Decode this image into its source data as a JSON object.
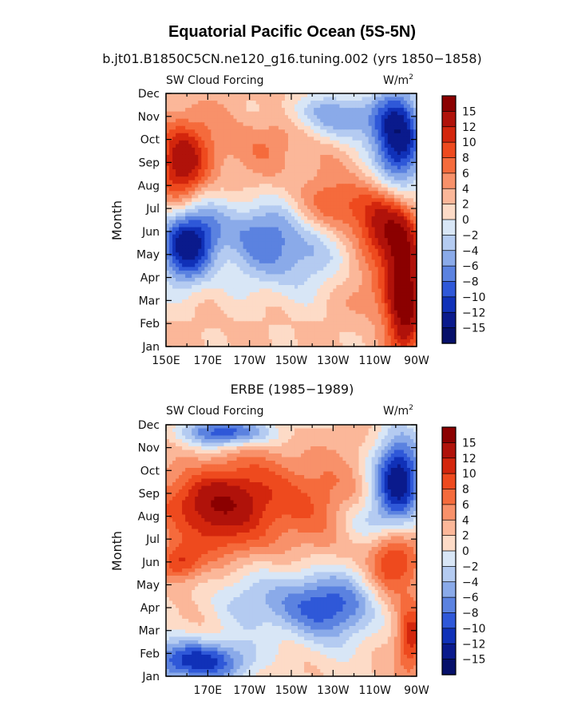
{
  "title": "Equatorial Pacific Ocean (5S-5N)",
  "colorbar_levels": [
    "15",
    "12",
    "10",
    "8",
    "6",
    "4",
    "2",
    "0",
    "−2",
    "−4",
    "−6",
    "−8",
    "−10",
    "−12",
    "−15"
  ],
  "colors": {
    "positive_max": "#8b0000",
    "negative_max": "#08086e",
    "zero": "#ffffff",
    "scale": [
      "#8b0000",
      "#b0120a",
      "#d3260d",
      "#ee4a1e",
      "#f56b3c",
      "#f8916a",
      "#fbb799",
      "#fddbc7",
      "#d8e6f6",
      "#b4cbf1",
      "#8aaae9",
      "#5b82e0",
      "#2f58d8",
      "#1031b8",
      "#0a1a8c",
      "#06106a"
    ]
  },
  "chart_data": [
    {
      "type": "heatmap",
      "subtitle": "b.jt01.B1850C5CN.ne120_g16.tuning.002 (yrs 1850−1858)",
      "left_label": "SW Cloud Forcing",
      "unit_label": "W/m",
      "unit_sup": "2",
      "ylabel": "Month",
      "yticks": [
        "Jan",
        "Feb",
        "Mar",
        "Apr",
        "May",
        "Jun",
        "Jul",
        "Aug",
        "Sep",
        "Oct",
        "Nov",
        "Dec"
      ],
      "xticks": [
        "150E",
        "170E",
        "170W",
        "150W",
        "130W",
        "110W",
        "90W"
      ],
      "x_lon": [
        150,
        170,
        190,
        210,
        230,
        250,
        270
      ],
      "xlim": [
        150,
        270
      ],
      "zlevels": [
        -15,
        -12,
        -10,
        -8,
        -6,
        -4,
        -2,
        0,
        2,
        4,
        6,
        8,
        10,
        12,
        15
      ]
    },
    {
      "type": "heatmap",
      "subtitle": "ERBE (1985−1989)",
      "left_label": "SW Cloud Forcing",
      "unit_label": "W/m",
      "unit_sup": "2",
      "ylabel": "Month",
      "yticks": [
        "Jan",
        "Feb",
        "Mar",
        "Apr",
        "May",
        "Jun",
        "Jul",
        "Aug",
        "Sep",
        "Oct",
        "Nov",
        "Dec"
      ],
      "xticks": [
        "170E",
        "170W",
        "150W",
        "130W",
        "110W",
        "90W"
      ],
      "x_lon": [
        170,
        190,
        210,
        230,
        250,
        270
      ],
      "xlim": [
        150,
        270
      ],
      "zlevels": [
        -15,
        -12,
        -10,
        -8,
        -6,
        -4,
        -2,
        0,
        2,
        4,
        6,
        8,
        10,
        12,
        15
      ]
    }
  ]
}
